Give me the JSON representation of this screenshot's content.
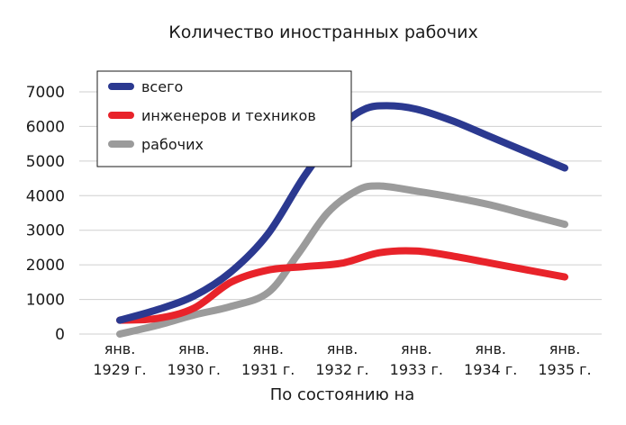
{
  "chart_data": {
    "type": "line",
    "title": "Количество иностранных рабочих",
    "xlabel": "По состоянию на",
    "ylabel": "",
    "categories": [
      [
        "янв.",
        "1929 г."
      ],
      [
        "янв.",
        "1930 г."
      ],
      [
        "янв.",
        "1931 г."
      ],
      [
        "янв.",
        "1932 г."
      ],
      [
        "янв.",
        "1933 г."
      ],
      [
        "янв.",
        "1934 г."
      ],
      [
        "янв.",
        "1935 г."
      ]
    ],
    "yticks": [
      "0",
      "1000",
      "2000",
      "3000",
      "4000",
      "5000",
      "6000",
      "7000"
    ],
    "ylim": [
      0,
      7000
    ],
    "grid": "horizontal",
    "legend_position": "top-left",
    "series": [
      {
        "name": "всего",
        "color": "#2b3990",
        "points": [
          [
            0,
            400
          ],
          [
            0.5,
            700
          ],
          [
            1,
            1100
          ],
          [
            1.5,
            1800
          ],
          [
            2,
            2900
          ],
          [
            2.5,
            4600
          ],
          [
            3,
            6000
          ],
          [
            3.3,
            6500
          ],
          [
            3.6,
            6600
          ],
          [
            4,
            6500
          ],
          [
            4.5,
            6150
          ],
          [
            5,
            5700
          ],
          [
            5.5,
            5250
          ],
          [
            6,
            4800
          ]
        ]
      },
      {
        "name": "инженеров и техников",
        "color": "#e8232a",
        "points": [
          [
            0,
            400
          ],
          [
            0.5,
            450
          ],
          [
            1,
            750
          ],
          [
            1.5,
            1500
          ],
          [
            2,
            1850
          ],
          [
            2.5,
            1950
          ],
          [
            3,
            2050
          ],
          [
            3.5,
            2350
          ],
          [
            4,
            2400
          ],
          [
            4.5,
            2250
          ],
          [
            5,
            2050
          ],
          [
            5.5,
            1850
          ],
          [
            6,
            1650
          ]
        ]
      },
      {
        "name": "рабочих",
        "color": "#9b9b9b",
        "points": [
          [
            0,
            0
          ],
          [
            0.5,
            250
          ],
          [
            1,
            550
          ],
          [
            1.5,
            800
          ],
          [
            2,
            1200
          ],
          [
            2.4,
            2300
          ],
          [
            2.8,
            3500
          ],
          [
            3.2,
            4150
          ],
          [
            3.5,
            4280
          ],
          [
            4,
            4130
          ],
          [
            4.5,
            3950
          ],
          [
            5,
            3730
          ],
          [
            5.5,
            3450
          ],
          [
            6,
            3170
          ]
        ]
      }
    ]
  }
}
